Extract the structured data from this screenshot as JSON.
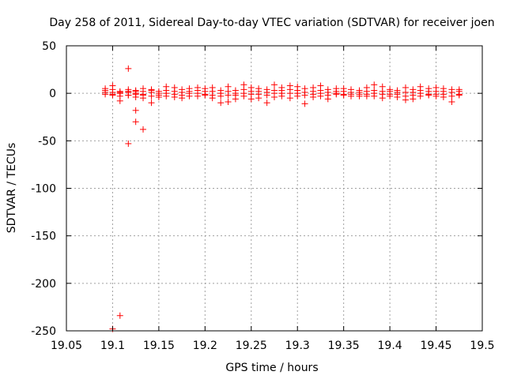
{
  "chart_data": {
    "type": "scatter",
    "title": "Day 258 of 2011, Sidereal Day-to-day VTEC variation (SDTVAR) for receiver joen",
    "xlabel": "GPS time / hours",
    "ylabel": "SDTVAR / TECUs",
    "xlim": [
      19.05,
      19.5
    ],
    "ylim": [
      -250,
      50
    ],
    "xticks": [
      19.05,
      19.1,
      19.15,
      19.2,
      19.25,
      19.3,
      19.35,
      19.4,
      19.45,
      19.5
    ],
    "xtick_labels": [
      "19.05",
      "19.1",
      "19.15",
      "19.2",
      "19.25",
      "19.3",
      "19.35",
      "19.4",
      "19.45",
      "19.5"
    ],
    "yticks": [
      50,
      0,
      -50,
      -100,
      -150,
      -200,
      -250
    ],
    "ytick_labels": [
      "50",
      "0",
      "-50",
      "-100",
      "-150",
      "-200",
      "-250"
    ],
    "grid": true,
    "marker": "+",
    "series_color": "#ff0000",
    "series": [
      {
        "name": "SDTVAR",
        "x": [
          19.092,
          19.092,
          19.092,
          19.092,
          19.1,
          19.1,
          19.1,
          19.1,
          19.1,
          19.108,
          19.108,
          19.108,
          19.108,
          19.108,
          19.117,
          19.117,
          19.117,
          19.117,
          19.117,
          19.125,
          19.125,
          19.125,
          19.125,
          19.125,
          19.133,
          19.133,
          19.133,
          19.133,
          19.133,
          19.142,
          19.142,
          19.142,
          19.142,
          19.15,
          19.15,
          19.15,
          19.15,
          19.158,
          19.158,
          19.158,
          19.158,
          19.167,
          19.167,
          19.167,
          19.167,
          19.175,
          19.175,
          19.175,
          19.175,
          19.183,
          19.183,
          19.183,
          19.183,
          19.192,
          19.192,
          19.192,
          19.192,
          19.2,
          19.2,
          19.2,
          19.2,
          19.208,
          19.208,
          19.208,
          19.208,
          19.217,
          19.217,
          19.217,
          19.217,
          19.225,
          19.225,
          19.225,
          19.225,
          19.233,
          19.233,
          19.233,
          19.233,
          19.242,
          19.242,
          19.242,
          19.242,
          19.25,
          19.25,
          19.25,
          19.25,
          19.258,
          19.258,
          19.258,
          19.258,
          19.267,
          19.267,
          19.267,
          19.267,
          19.275,
          19.275,
          19.275,
          19.275,
          19.283,
          19.283,
          19.283,
          19.283,
          19.292,
          19.292,
          19.292,
          19.292,
          19.3,
          19.3,
          19.3,
          19.3,
          19.308,
          19.308,
          19.308,
          19.308,
          19.317,
          19.317,
          19.317,
          19.317,
          19.325,
          19.325,
          19.325,
          19.325,
          19.333,
          19.333,
          19.333,
          19.333,
          19.342,
          19.342,
          19.342,
          19.342,
          19.35,
          19.35,
          19.35,
          19.35,
          19.358,
          19.358,
          19.358,
          19.358,
          19.367,
          19.367,
          19.367,
          19.367,
          19.375,
          19.375,
          19.375,
          19.375,
          19.383,
          19.383,
          19.383,
          19.383,
          19.392,
          19.392,
          19.392,
          19.392,
          19.4,
          19.4,
          19.4,
          19.4,
          19.408,
          19.408,
          19.408,
          19.408,
          19.417,
          19.417,
          19.417,
          19.417,
          19.425,
          19.425,
          19.425,
          19.425,
          19.433,
          19.433,
          19.433,
          19.433,
          19.442,
          19.442,
          19.442,
          19.442,
          19.45,
          19.45,
          19.45,
          19.45,
          19.458,
          19.458,
          19.458,
          19.458,
          19.467,
          19.467,
          19.467,
          19.467,
          19.475,
          19.475,
          19.475,
          19.475,
          19.1,
          19.108,
          19.117,
          19.117,
          19.125,
          19.125,
          19.133,
          19.142
        ],
        "y": [
          5,
          3,
          1,
          -1,
          8,
          4,
          1,
          -2,
          -248,
          2,
          0,
          -3,
          -8,
          -234,
          4,
          1,
          -2,
          -53,
          26,
          3,
          -1,
          -4,
          -18,
          -30,
          5,
          2,
          -1,
          -5,
          -38,
          4,
          1,
          -3,
          -10,
          2,
          0,
          -2,
          -4,
          7,
          3,
          0,
          -3,
          6,
          2,
          -1,
          -4,
          4,
          1,
          -2,
          -5,
          5,
          2,
          0,
          -3,
          6,
          3,
          0,
          -3,
          5,
          2,
          -1,
          -2,
          6,
          2,
          -2,
          -5,
          3,
          0,
          -3,
          -10,
          7,
          2,
          -2,
          -9,
          3,
          0,
          -2,
          -6,
          9,
          4,
          0,
          -3,
          6,
          2,
          -1,
          -6,
          5,
          2,
          -1,
          -5,
          4,
          1,
          -2,
          -10,
          9,
          3,
          0,
          -4,
          6,
          3,
          0,
          -3,
          8,
          4,
          0,
          -5,
          7,
          3,
          0,
          -3,
          5,
          1,
          -2,
          -11,
          6,
          2,
          -1,
          -4,
          8,
          3,
          0,
          -3,
          4,
          1,
          -2,
          -6,
          5,
          2,
          0,
          -1,
          5,
          2,
          -1,
          -2,
          4,
          1,
          -1,
          -3,
          3,
          1,
          -1,
          -3,
          6,
          2,
          -1,
          -3,
          9,
          3,
          0,
          -3,
          7,
          2,
          -1,
          -5,
          4,
          2,
          -1,
          -3,
          3,
          1,
          -1,
          -4,
          6,
          1,
          -3,
          -7,
          4,
          1,
          -2,
          -6,
          7,
          3,
          0,
          -3,
          5,
          2,
          -1,
          -2,
          6,
          2,
          -1,
          -3,
          5,
          2,
          -1,
          -4,
          4,
          1,
          -3,
          -9,
          4,
          2,
          -1,
          -2,
          -1,
          1,
          -2,
          2,
          0,
          2,
          -2,
          3
        ]
      }
    ]
  }
}
